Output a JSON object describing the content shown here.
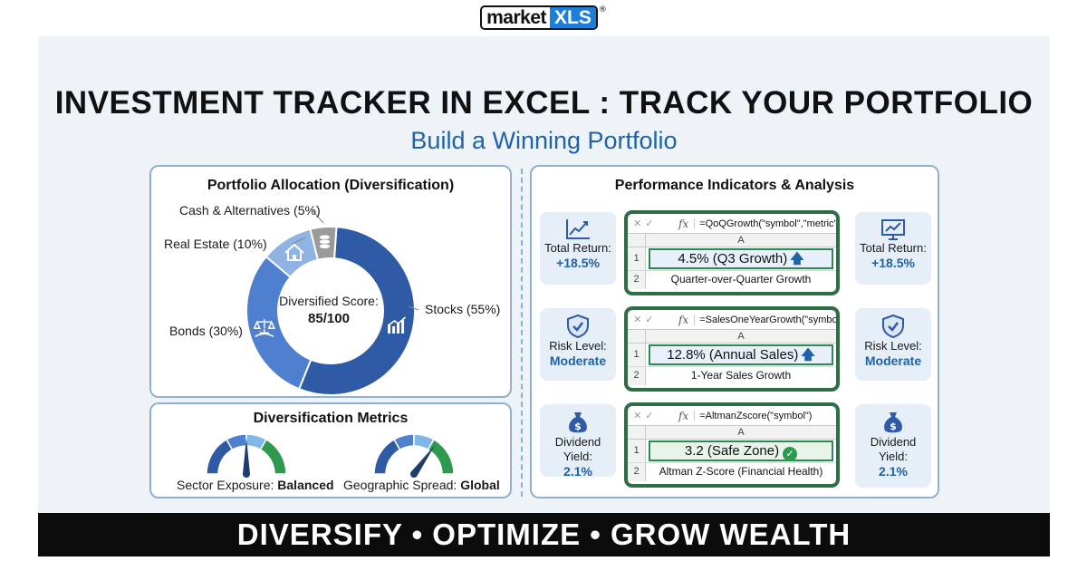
{
  "logo": {
    "market": "market",
    "xls": "XLS",
    "reg": "®"
  },
  "title": "INVESTMENT TRACKER IN EXCEL : TRACK YOUR PORTFOLIO",
  "subtitle": "Build a Winning Portfolio",
  "allocation": {
    "title": "Portfolio Allocation (Diversification)",
    "slices": [
      {
        "label": "Stocks (55%)",
        "percent": 55,
        "color": "#2f5aa6",
        "icon": "chart-growth-icon"
      },
      {
        "label": "Bonds (30%)",
        "percent": 30,
        "color": "#4f7fcf",
        "icon": "balance-scale-icon"
      },
      {
        "label": "Real Estate (10%)",
        "percent": 10,
        "color": "#8fb3e3",
        "icon": "house-icon"
      },
      {
        "label": "Cash & Alternatives (5%)",
        "percent": 5,
        "color": "#9a9a9a",
        "icon": "coins-icon"
      }
    ],
    "center_label": "Diversified Score:",
    "center_value": "85/100"
  },
  "metrics": {
    "title": "Diversification Metrics",
    "gauges": [
      {
        "label": "Sector Exposure: ",
        "value": "Balanced",
        "level": 0.5
      },
      {
        "label": "Geographic Spread: ",
        "value": "Global",
        "level": 0.7
      }
    ]
  },
  "indicators": {
    "title": "Performance Indicators & Analysis",
    "rows": [
      {
        "left": {
          "label": "Total Return:",
          "value": "+18.5%",
          "icon": "line-chart-icon"
        },
        "right": {
          "label": "Total Return:",
          "value": "+18.5%",
          "icon": "presentation-chart-icon"
        },
        "formula": "=QoQGrowth(\"symbol\",\"metric\")",
        "column": "A",
        "row1": "1",
        "row2": "2",
        "cell1": "4.5% (Q3 Growth)",
        "cell1_marker": "arrow-up",
        "cell2": "Quarter-over-Quarter Growth"
      },
      {
        "left": {
          "label": "Risk Level:",
          "value": "Moderate",
          "icon": "shield-check-icon"
        },
        "right": {
          "label": "Risk Level:",
          "value": "Moderate",
          "icon": "shield-check-icon"
        },
        "formula": "=SalesOneYearGrowth(\"symbol\")",
        "column": "A",
        "row1": "1",
        "row2": "2",
        "cell1": "12.8% (Annual Sales)",
        "cell1_marker": "arrow-up",
        "cell2": "1-Year Sales Growth"
      },
      {
        "left": {
          "label": "Dividend Yield:",
          "value": "2.1%",
          "icon": "money-bag-icon"
        },
        "right": {
          "label": "Dividend Yield:",
          "value": "2.1%",
          "icon": "money-bag-icon"
        },
        "formula": "=AltmanZscore(\"symbol\")",
        "column": "A",
        "row1": "1",
        "row2": "2",
        "cell1": "3.2 (Safe Zone)",
        "cell1_marker": "check",
        "cell2": "Altman Z-Score (Financial Health)"
      }
    ],
    "formula_bar": {
      "cancel": "✕",
      "enter": "✓",
      "fx": "fx"
    }
  },
  "banner": "DIVERSIFY • OPTIMIZE • GROW WEALTH",
  "colors": {
    "accent": "#1f62a8",
    "excel_green": "#2d6e45",
    "card_border": "#8fb0d0",
    "panel_bg": "#eef3f8"
  }
}
